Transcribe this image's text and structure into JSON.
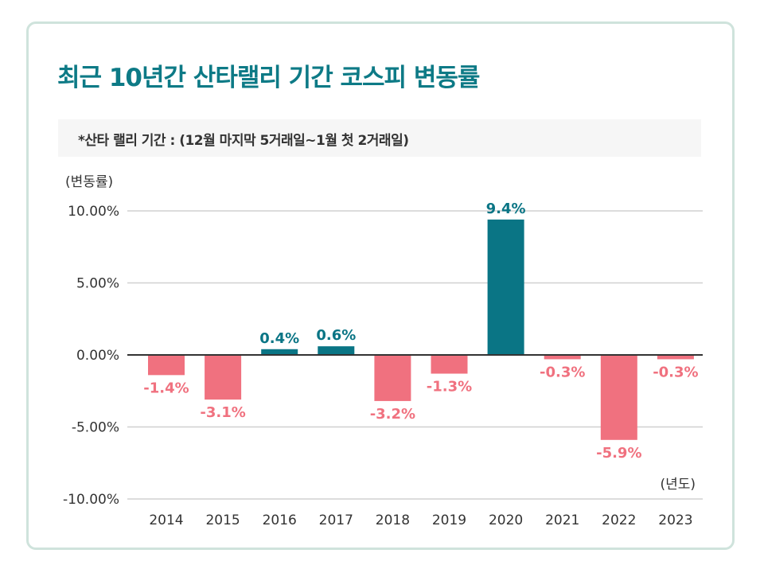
{
  "title": "최근 10년간 산타랠리 기간 코스피 변동률",
  "note": "*산타 랠리 기간 : (12월 마지막 5거래일~1월 첫 2거래일)",
  "colors": {
    "positive": "#0a7585",
    "negative": "#f0717f",
    "accent": "#0d7a86"
  },
  "chart_data": {
    "type": "bar",
    "title": "최근 10년간 산타랠리 기간 코스피 변동률",
    "ylabel": "(변동률)",
    "xlabel": "(년도)",
    "categories": [
      "2014",
      "2015",
      "2016",
      "2017",
      "2018",
      "2019",
      "2020",
      "2021",
      "2022",
      "2023"
    ],
    "values": [
      -1.4,
      -3.1,
      0.4,
      0.6,
      -3.2,
      -1.3,
      9.4,
      -0.3,
      -5.9,
      -0.3
    ],
    "data_labels": [
      "-1.4%",
      "-3.1%",
      "0.4%",
      "0.6%",
      "-3.2%",
      "-1.3%",
      "9.4%",
      "-0.3%",
      "-5.9%",
      "-0.3%"
    ],
    "yticks": [
      10,
      5,
      0,
      -5,
      -10
    ],
    "ytick_labels": [
      "10.00%",
      "5.00%",
      "0.00%",
      "-5.00%",
      "-10.00%"
    ],
    "ylim": [
      -10,
      10
    ],
    "grid": true
  }
}
